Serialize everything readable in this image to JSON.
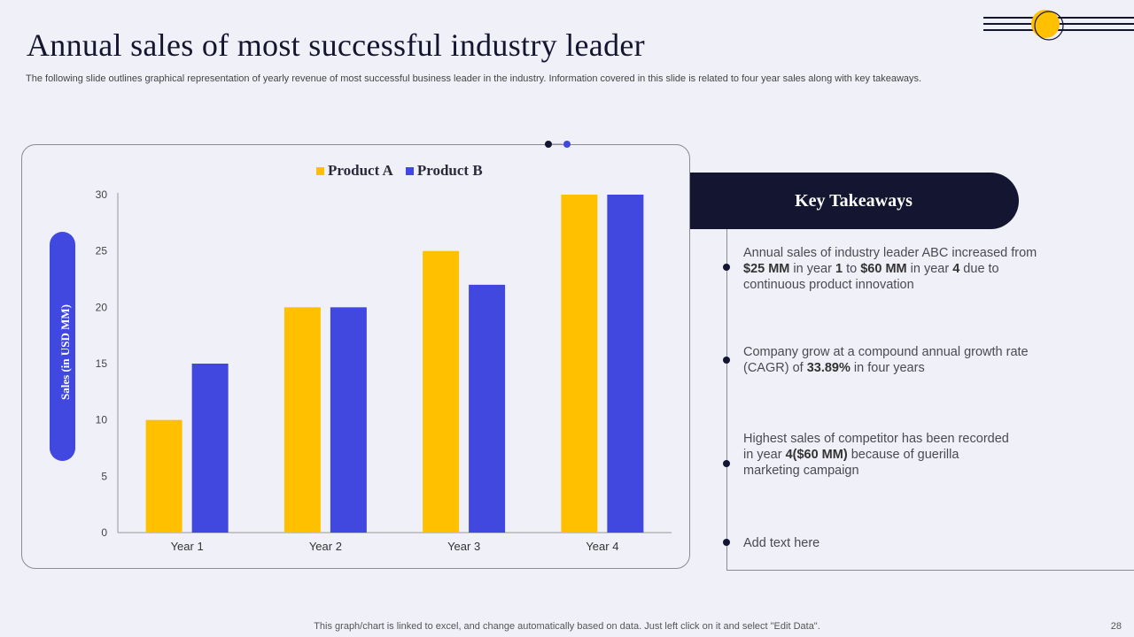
{
  "title": "Annual sales of most successful industry leader",
  "subtitle": "The following slide outlines graphical representation of yearly revenue of most successful business leader in the industry. Information covered in this slide is related to four year sales along with key takeaways.",
  "colors": {
    "product_a": "#FFC000",
    "product_b": "#4048E0",
    "dark": "#141530",
    "background": "#F0F0F8"
  },
  "chart_data": {
    "type": "bar",
    "categories": [
      "Year 1",
      "Year 2",
      "Year 3",
      "Year 4"
    ],
    "series": [
      {
        "name": "Product A",
        "values": [
          10,
          20,
          25,
          30
        ]
      },
      {
        "name": "Product B",
        "values": [
          15,
          20,
          22,
          30
        ]
      }
    ],
    "ylabel": "Sales (in USD MM)",
    "ylim": [
      0,
      30
    ],
    "yticks": [
      0,
      5,
      10,
      15,
      20,
      25,
      30
    ],
    "legend_position": "top",
    "grid": false
  },
  "takeaways": {
    "header": "Key Takeaways",
    "item1": {
      "t1": "Annual sales of industry leader ABC increased from ",
      "b1": "$25 MM",
      "t2": " in year ",
      "b2": "1",
      "t3": " to ",
      "b3": "$60 MM",
      "t4": " in year ",
      "b4": "4",
      "t5": " due to continuous product innovation"
    },
    "item2": {
      "t1": "Company grow at a compound annual growth rate (CAGR) of ",
      "b1": "33.89%",
      "t2": " in four years"
    },
    "item3": {
      "t1": "Highest sales of competitor has been recorded in year ",
      "b1": "4($60 MM)",
      "t2": " because of guerilla marketing campaign"
    },
    "item4": {
      "t1": "Add text here"
    }
  },
  "footer": "This graph/chart is linked to excel,  and change automatically based on data. Just left click on it and select \"Edit Data\".",
  "page_number": "28"
}
